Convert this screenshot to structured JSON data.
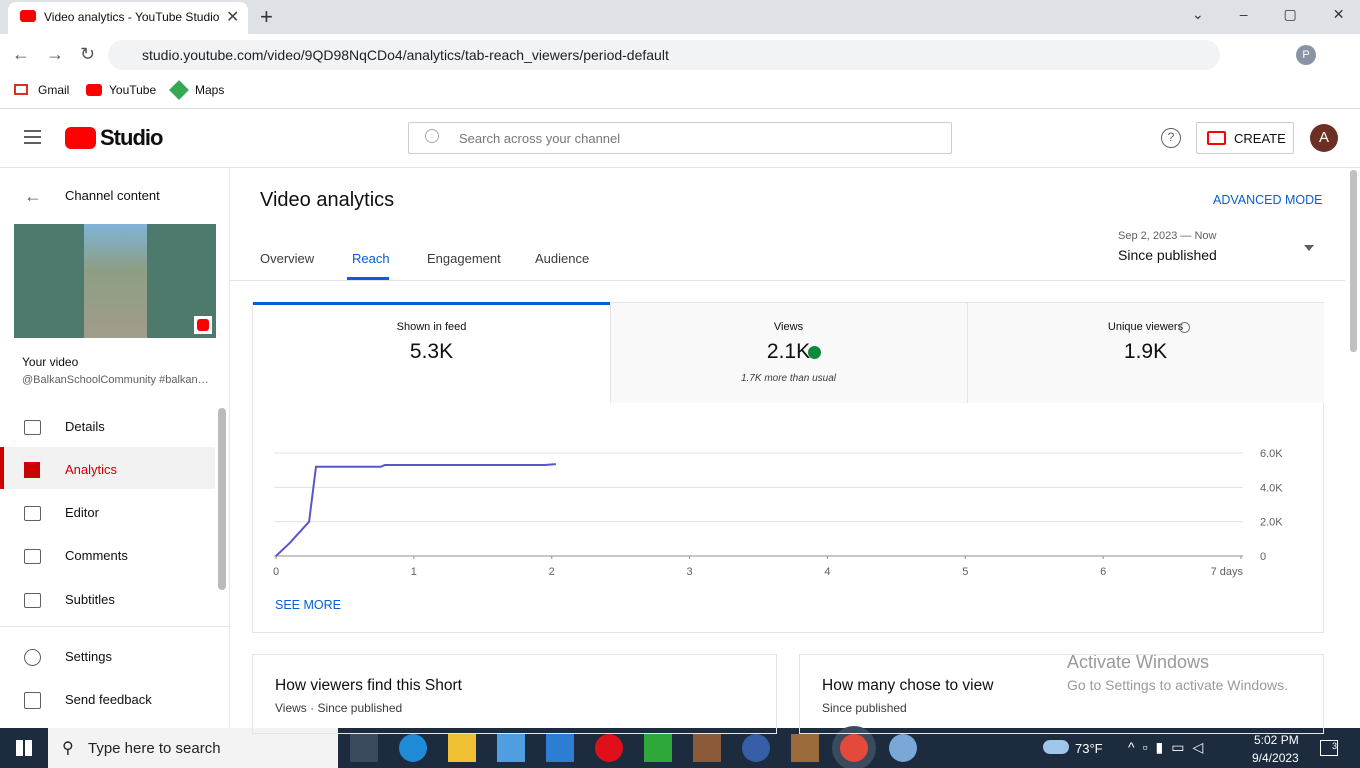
{
  "browser": {
    "tab_title": "Video analytics - YouTube Studio",
    "url": "studio.youtube.com/video/9QD98NqCDo4/analytics/tab-reach_viewers/period-default",
    "bookmarks": [
      "Gmail",
      "YouTube",
      "Maps"
    ],
    "profile": "P"
  },
  "header": {
    "logo": "Studio",
    "search_placeholder": "Search across your channel",
    "create": "CREATE",
    "avatar": "A"
  },
  "sidebar": {
    "back": "Channel content",
    "video_label": "Your video",
    "video_title": "@BalkanSchoolCommunity #balkan…",
    "nav": [
      "Details",
      "Analytics",
      "Editor",
      "Comments",
      "Subtitles"
    ],
    "bottom": [
      "Settings",
      "Send feedback"
    ]
  },
  "main": {
    "title": "Video analytics",
    "advanced": "ADVANCED MODE",
    "tabs": [
      "Overview",
      "Reach",
      "Engagement",
      "Audience"
    ],
    "date_range": "Sep 2, 2023 — Now",
    "period": "Since published",
    "metrics": [
      {
        "label": "Shown in feed",
        "value": "5.3K"
      },
      {
        "label": "Views",
        "value": "2.1K",
        "note": "1.7K more than usual"
      },
      {
        "label": "Unique viewers",
        "value": "1.9K"
      }
    ],
    "see_more": "SEE MORE",
    "cards": [
      {
        "title": "How viewers find this Short",
        "subtitle": "Views · Since published"
      },
      {
        "title": "How many chose to view",
        "subtitle": "Since published"
      }
    ]
  },
  "chart_data": {
    "type": "line",
    "x": [
      0,
      0.1,
      0.24,
      0.29,
      0.76,
      0.79,
      1.95,
      2.03
    ],
    "series": [
      {
        "color": "#5957c6",
        "values": [
          0,
          760,
          2000,
          5200,
          5200,
          5300,
          5300,
          5350
        ]
      }
    ],
    "xlim": [
      0,
      7
    ],
    "xticks": [
      0,
      1,
      2,
      3,
      4,
      5,
      6,
      {
        "value": 7,
        "label": "7 days"
      }
    ],
    "ylim": [
      0,
      6000
    ],
    "yticks": [
      0,
      {
        "value": 2000,
        "label": "2.0K"
      },
      {
        "value": 4000,
        "label": "4.0K"
      },
      {
        "value": 6000,
        "label": "6.0K"
      }
    ],
    "grid": true
  },
  "watermark": {
    "title": "Activate Windows",
    "text": "Go to Settings to activate Windows."
  },
  "taskbar": {
    "search": "Type here to search",
    "weather": "73°F",
    "time": "5:02 PM",
    "date": "9/4/2023",
    "notifications": "3"
  }
}
